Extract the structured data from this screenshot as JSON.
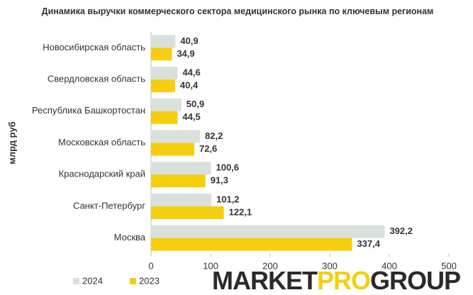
{
  "chart_data": {
    "type": "hbar",
    "title": "Динамика выручки коммерческого сектора медицинского рынка по ключевым регионам",
    "y_label": "млрд руб",
    "categories": [
      "Новосибирская область",
      "Свердловская область",
      "Республика Башкортостан",
      "Московская область",
      "Краснодарский край",
      "Санкт-Петербург",
      "Москва"
    ],
    "series": [
      {
        "name": "2024",
        "color": "#d9e1dc",
        "values": [
          40.9,
          44.6,
          50.9,
          82.2,
          100.6,
          101.2,
          392.2
        ],
        "value_labels": [
          "40,9",
          "44,6",
          "50,9",
          "82,2",
          "100,6",
          "101,2",
          "392,2"
        ]
      },
      {
        "name": "2023",
        "color": "#f5cf0f",
        "values": [
          34.9,
          40.4,
          44.5,
          72.6,
          91.3,
          122.1,
          337.4
        ],
        "value_labels": [
          "34,9",
          "40,4",
          "44,5",
          "72,6",
          "91,3",
          "122,1",
          "337,4"
        ]
      }
    ],
    "xlim": [
      0,
      500
    ],
    "xticks": [
      0,
      100,
      200,
      300,
      400,
      500
    ]
  },
  "logo": [
    "MARKET",
    "PRO",
    "GROUP"
  ]
}
